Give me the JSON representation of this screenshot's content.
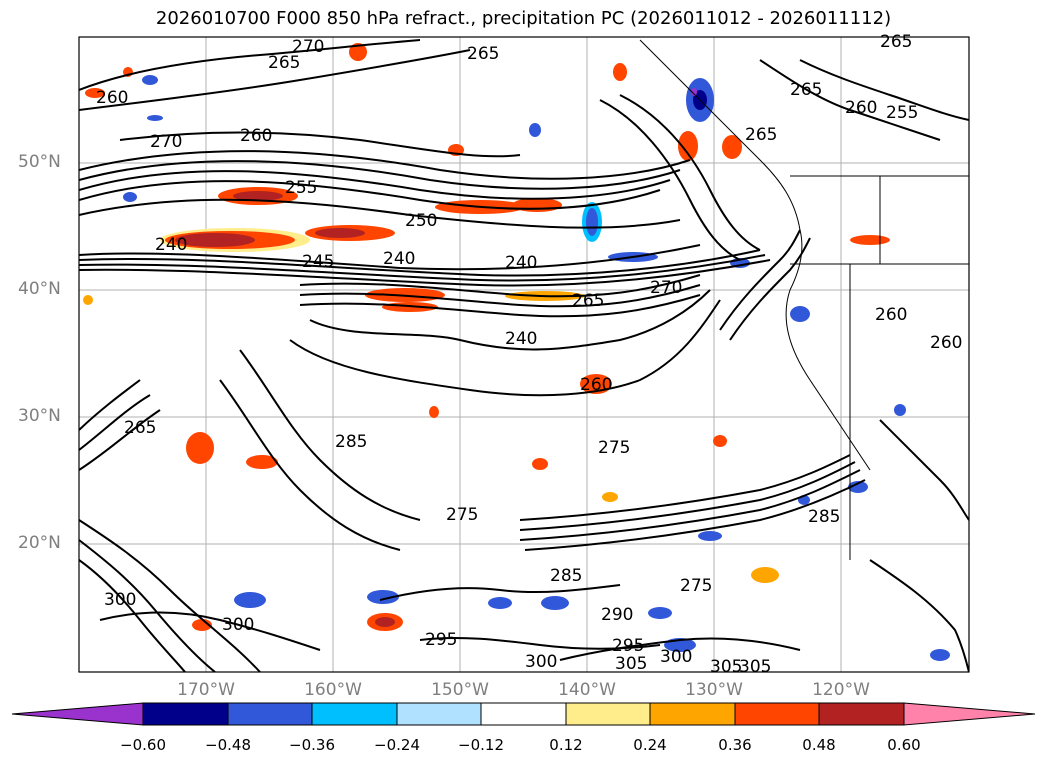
{
  "title": "2026010700 F000 850 hPa refract., precipitation PC (2026011012 - 2026011112)",
  "lat_labels": [
    "50°N",
    "40°N",
    "30°N",
    "20°N"
  ],
  "lon_labels": [
    "170°W",
    "160°W",
    "150°W",
    "140°W",
    "130°W",
    "120°W"
  ],
  "colorbar": {
    "ticks": [
      "−0.60",
      "−0.48",
      "−0.36",
      "−0.24",
      "−0.12",
      "0.12",
      "0.24",
      "0.36",
      "0.48",
      "0.60"
    ],
    "colors": [
      "#9a32cd",
      "#00008b",
      "#3158d8",
      "#00bfff",
      "#b0e2ff",
      "#ffffff",
      "#ffec8b",
      "#ffa500",
      "#ff4500",
      "#b22222",
      "#ff82ab"
    ]
  },
  "contour_labels": [
    {
      "t": "270"
    },
    {
      "t": "265"
    },
    {
      "t": "265"
    },
    {
      "t": "265"
    },
    {
      "t": "260"
    },
    {
      "t": "270"
    },
    {
      "t": "260"
    },
    {
      "t": "255"
    },
    {
      "t": "250"
    },
    {
      "t": "240"
    },
    {
      "t": "245"
    },
    {
      "t": "240"
    },
    {
      "t": "240"
    },
    {
      "t": "270"
    },
    {
      "t": "265"
    },
    {
      "t": "240"
    },
    {
      "t": "260"
    },
    {
      "t": "265"
    },
    {
      "t": "260"
    },
    {
      "t": "255"
    },
    {
      "t": "265"
    },
    {
      "t": "260"
    },
    {
      "t": "260"
    },
    {
      "t": "275"
    },
    {
      "t": "285"
    },
    {
      "t": "275"
    },
    {
      "t": "285"
    },
    {
      "t": "295"
    },
    {
      "t": "290"
    },
    {
      "t": "295"
    },
    {
      "t": "300"
    },
    {
      "t": "305"
    },
    {
      "t": "300"
    },
    {
      "t": "275"
    },
    {
      "t": "300"
    },
    {
      "t": "305"
    },
    {
      "t": "285"
    },
    {
      "t": "265"
    },
    {
      "t": "300"
    },
    {
      "t": "305"
    }
  ]
}
